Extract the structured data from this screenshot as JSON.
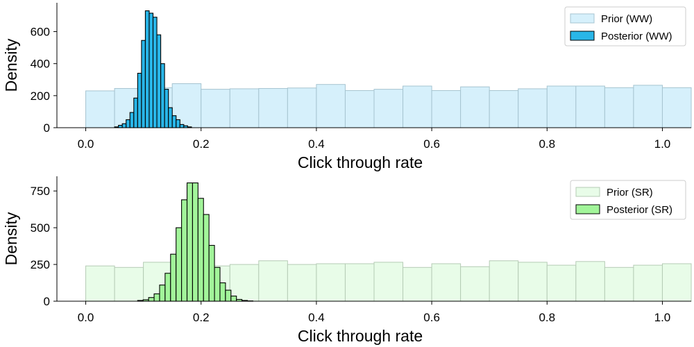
{
  "chart_data": [
    {
      "type": "bar",
      "xlabel": "Click through rate",
      "ylabel": "Density",
      "xlim": [
        -0.05,
        1.05
      ],
      "ylim": [
        0,
        780
      ],
      "xticks": [
        0.0,
        0.2,
        0.4,
        0.6,
        0.8,
        1.0
      ],
      "xtick_labels": [
        "0.0",
        "0.2",
        "0.4",
        "0.6",
        "0.8",
        "1.0"
      ],
      "yticks": [
        0,
        200,
        400,
        600
      ],
      "ytick_labels": [
        "0",
        "200",
        "400",
        "600"
      ],
      "grid": false,
      "legend_position": "top-right",
      "series": [
        {
          "name": "Prior (WW)",
          "kind": "histogram",
          "fill": "#d6f0fb",
          "edge": "#a6c4d0",
          "bin_width": 0.05,
          "bin_edges_start": 0.0,
          "values": [
            230,
            245,
            250,
            275,
            240,
            243,
            245,
            248,
            270,
            232,
            240,
            260,
            232,
            255,
            232,
            243,
            260,
            260,
            250,
            265,
            250
          ]
        },
        {
          "name": "Posterior (WW)",
          "kind": "histogram",
          "fill": "#29b6e8",
          "edge": "#000000",
          "bin_width": 0.00667,
          "bin_edges_start": 0.05,
          "values": [
            5,
            15,
            25,
            50,
            95,
            185,
            340,
            545,
            730,
            715,
            690,
            580,
            400,
            240,
            125,
            75,
            50,
            20,
            12,
            5
          ]
        }
      ]
    },
    {
      "type": "bar",
      "xlabel": "Click through rate",
      "ylabel": "Density",
      "xlim": [
        -0.05,
        1.05
      ],
      "ylim": [
        0,
        850
      ],
      "xticks": [
        0.0,
        0.2,
        0.4,
        0.6,
        0.8,
        1.0
      ],
      "xtick_labels": [
        "0.0",
        "0.2",
        "0.4",
        "0.6",
        "0.8",
        "1.0"
      ],
      "yticks": [
        0,
        250,
        500,
        750
      ],
      "ytick_labels": [
        "0",
        "250",
        "500",
        "750"
      ],
      "grid": false,
      "legend_position": "top-right",
      "series": [
        {
          "name": "Prior (SR)",
          "kind": "histogram",
          "fill": "#e8fce8",
          "edge": "#b5cbb5",
          "bin_width": 0.05,
          "bin_edges_start": 0.0,
          "values": [
            240,
            230,
            265,
            245,
            240,
            250,
            275,
            250,
            255,
            255,
            265,
            230,
            255,
            235,
            275,
            265,
            245,
            270,
            230,
            245,
            255
          ]
        },
        {
          "name": "Posterior (SR)",
          "kind": "histogram",
          "fill": "#a2f59a",
          "edge": "#000000",
          "bin_width": 0.00952,
          "bin_edges_start": 0.09,
          "values": [
            5,
            10,
            25,
            50,
            110,
            190,
            320,
            500,
            690,
            805,
            805,
            700,
            590,
            380,
            230,
            125,
            75,
            35,
            12,
            5,
            2
          ]
        }
      ]
    }
  ]
}
